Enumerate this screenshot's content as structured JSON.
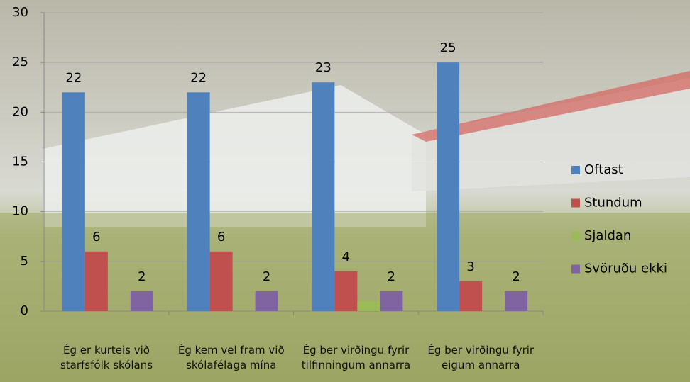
{
  "chart_data": {
    "type": "bar",
    "categories": [
      "Ég er kurteis við starfsfólk skólans",
      "Ég kem vel fram við skólafélaga mína",
      "Ég ber virðingu fyrir tilfinningum annarra",
      "Ég ber virðingu fyrir eigum annarra"
    ],
    "series": [
      {
        "name": "Oftast",
        "color": "#4f81bd",
        "values": [
          22,
          22,
          23,
          25
        ],
        "show_labels": true
      },
      {
        "name": "Stundum",
        "color": "#c0504d",
        "values": [
          6,
          6,
          4,
          3
        ],
        "show_labels": true
      },
      {
        "name": "Sjaldan",
        "color": "#9bbb59",
        "values": [
          0,
          0,
          1,
          0
        ],
        "show_labels": false
      },
      {
        "name": "Svöruðu ekki",
        "color": "#8064a2",
        "values": [
          2,
          2,
          2,
          2
        ],
        "show_labels": true
      }
    ],
    "ylim": [
      0,
      30
    ],
    "yticks": [
      0,
      5,
      10,
      15,
      20,
      25,
      30
    ],
    "grid": true,
    "legend": "right"
  }
}
